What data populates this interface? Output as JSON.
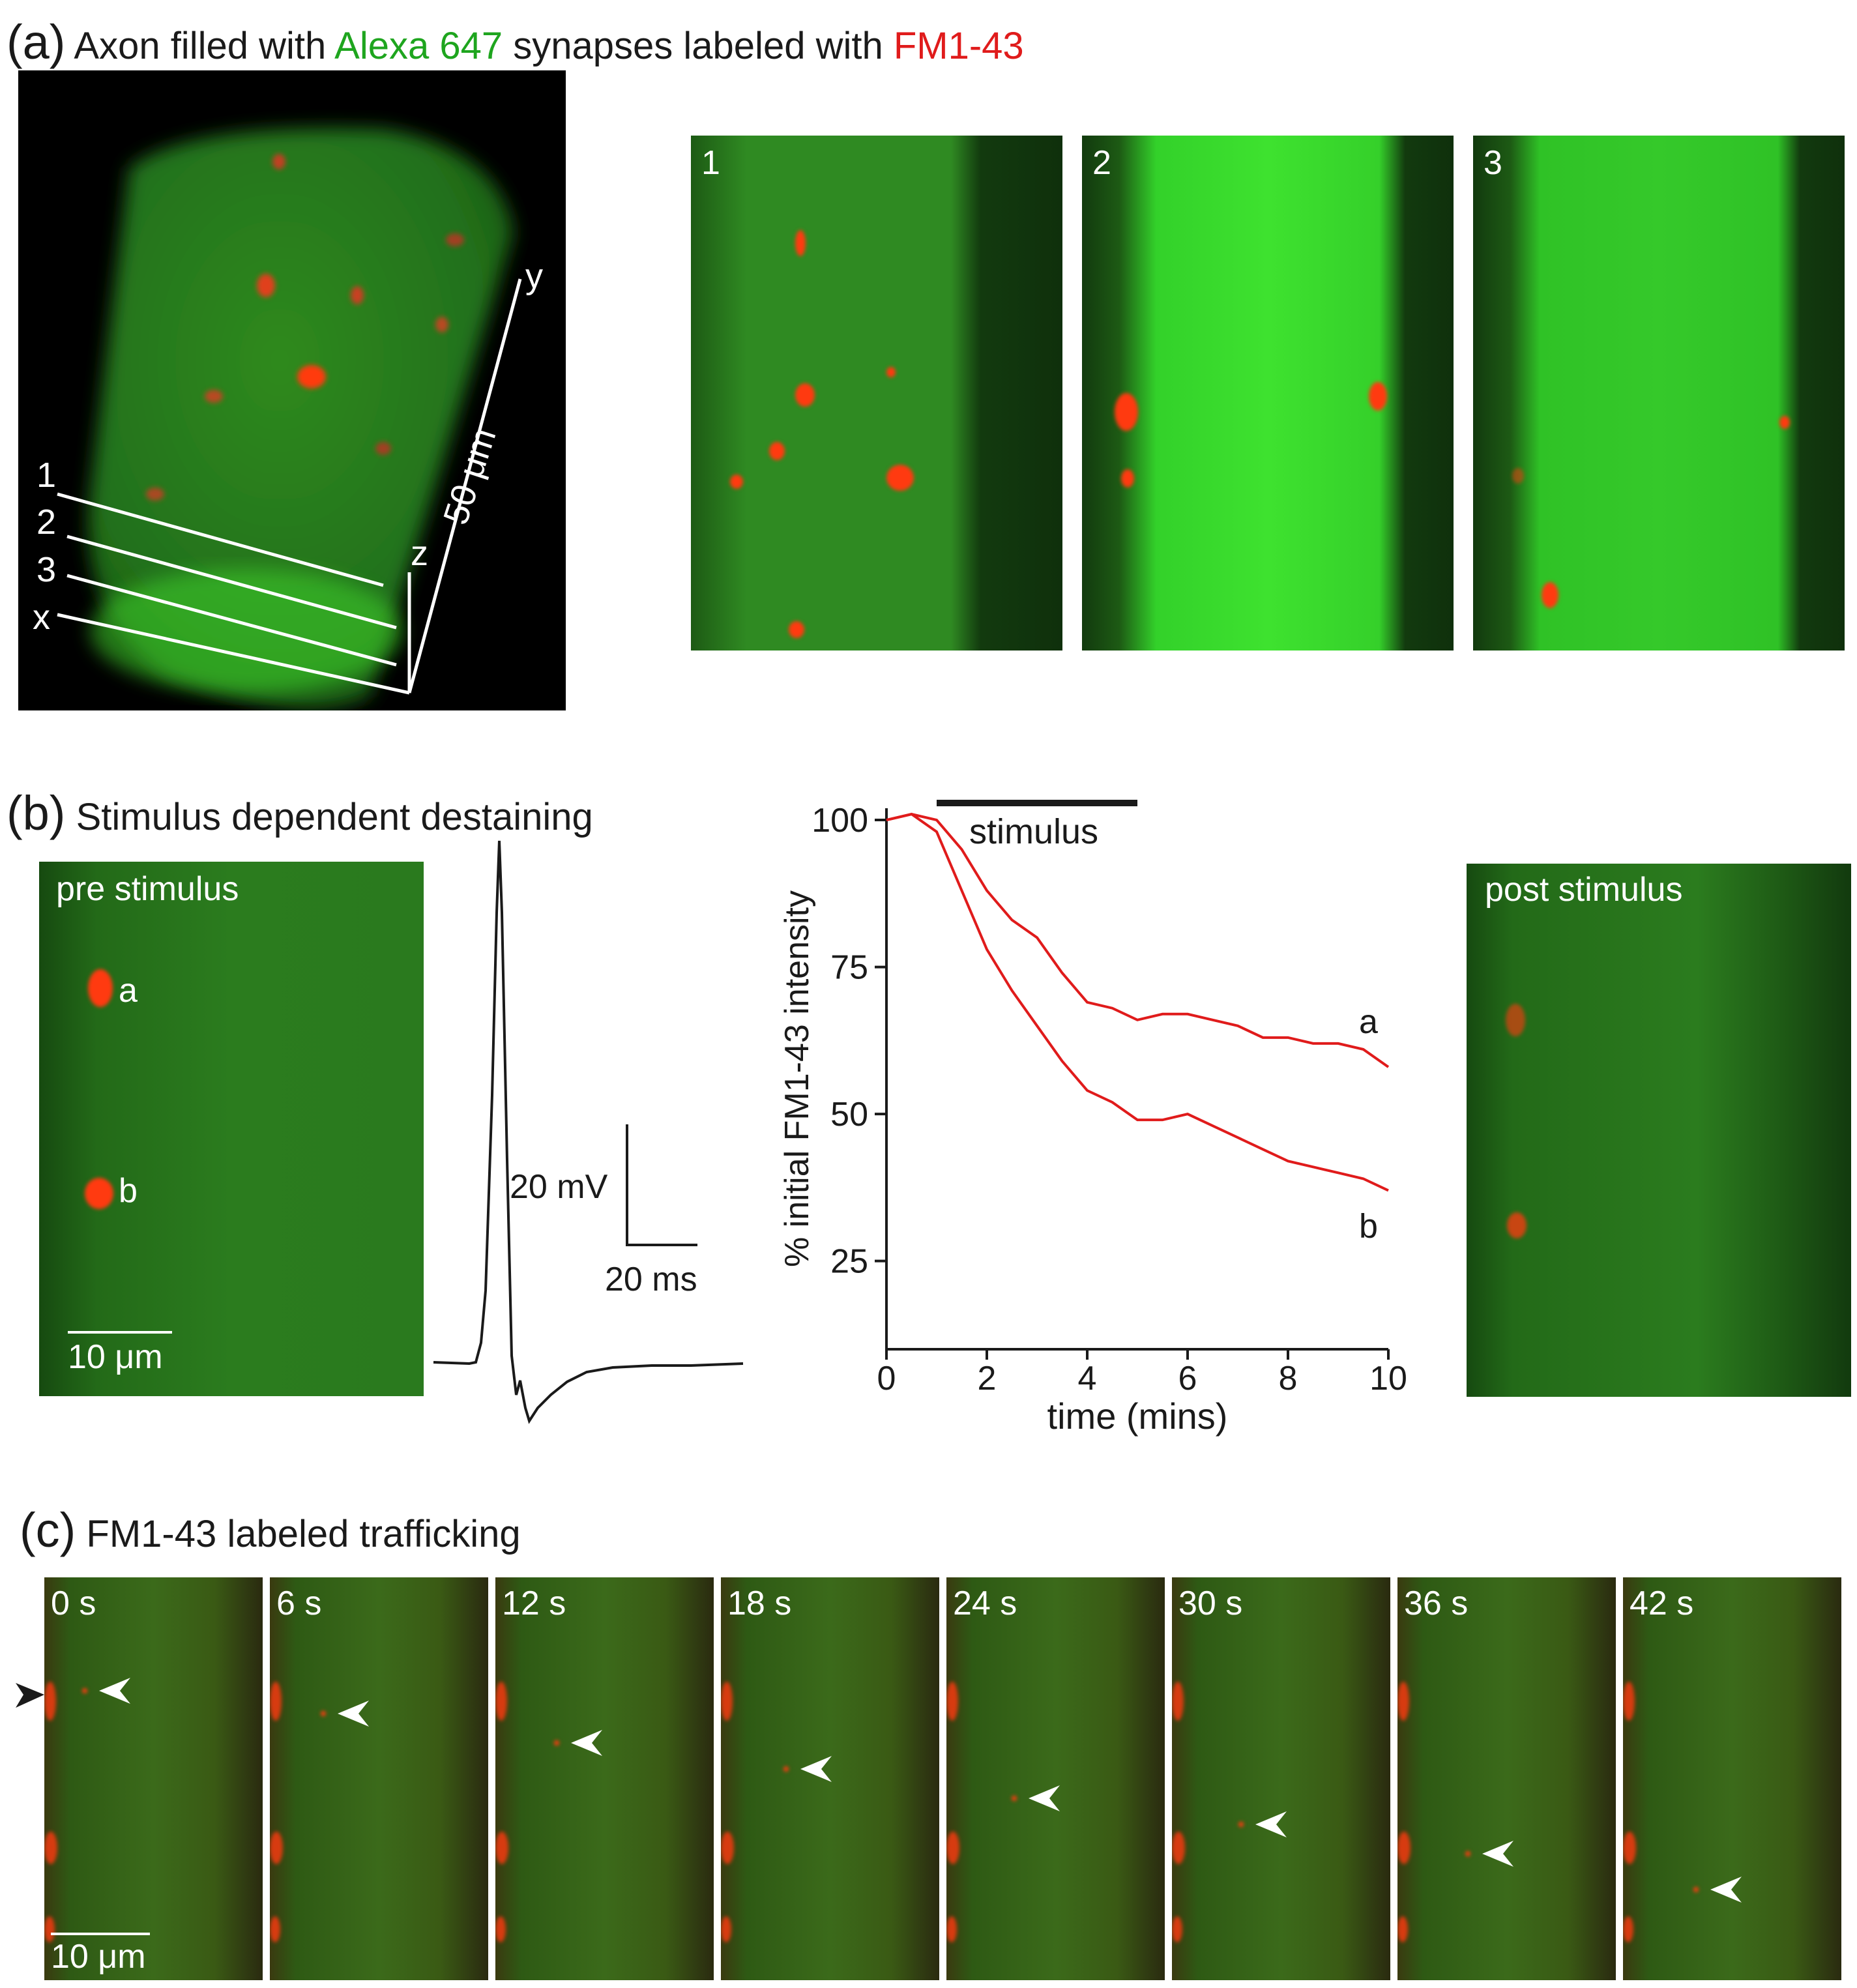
{
  "panel_a": {
    "letter": "(a)",
    "title_part1": "Axon filled with ",
    "title_green": "Alexa 647",
    "title_part2": " synapses labeled with ",
    "title_red": "FM1-43",
    "section_labels": [
      "1",
      "2",
      "3"
    ],
    "axis_x": "x",
    "axis_y": "y",
    "axis_z": "z",
    "scale": "50 μm",
    "frame_labels": [
      "1",
      "2",
      "3"
    ],
    "colors": {
      "green": "#1ea51e",
      "red": "#e01b1b"
    }
  },
  "panel_b": {
    "letter": "(b)",
    "title": "Stimulus dependent destaining",
    "pre_label": "pre stimulus",
    "post_label": "post stimulus",
    "spot_a": "a",
    "spot_b": "b",
    "scalebar": "10 μm",
    "trace_scale_v": "20 mV",
    "trace_scale_t": "20 ms"
  },
  "chart_data": {
    "type": "line",
    "xlabel": "time (mins)",
    "ylabel": "% initial FM1-43 intensity",
    "xlim": [
      0,
      10
    ],
    "ylim": [
      10,
      102
    ],
    "xticks": [
      "0",
      "2",
      "4",
      "6",
      "8",
      "10"
    ],
    "yticks": [
      "25",
      "50",
      "75",
      "100"
    ],
    "annotation": {
      "text": "stimulus",
      "start": 1,
      "end": 5
    },
    "x": [
      0,
      0.5,
      1,
      1.5,
      2,
      2.5,
      3,
      3.5,
      4,
      4.5,
      5,
      5.5,
      6,
      6.5,
      7,
      7.5,
      8,
      8.5,
      9,
      9.5,
      10
    ],
    "series": [
      {
        "name": "a",
        "color": "#e01b1b",
        "values": [
          100,
          101,
          100,
          95,
          88,
          83,
          80,
          74,
          69,
          68,
          66,
          67,
          67,
          66,
          65,
          63,
          63,
          62,
          62,
          61,
          58
        ]
      },
      {
        "name": "b",
        "color": "#e01b1b",
        "values": [
          100,
          101,
          98,
          88,
          78,
          71,
          65,
          59,
          54,
          52,
          49,
          49,
          50,
          48,
          46,
          44,
          42,
          41,
          40,
          39,
          37
        ]
      }
    ]
  },
  "panel_c": {
    "letter": "(c)",
    "title": "FM1-43 labeled trafficking",
    "frames": [
      "0 s",
      "6 s",
      "12 s",
      "18 s",
      "24 s",
      "30 s",
      "36 s",
      "42 s"
    ],
    "scalebar": "10 μm"
  }
}
